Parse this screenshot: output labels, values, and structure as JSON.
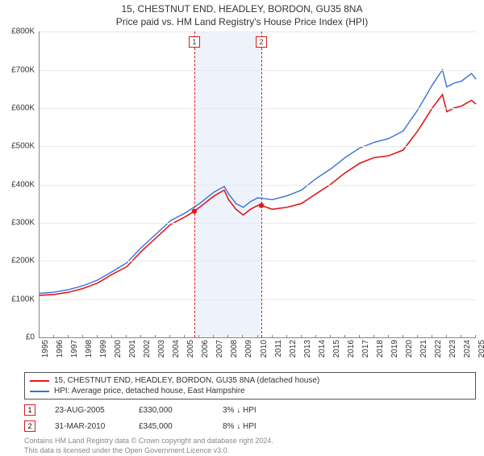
{
  "title_line1": "15, CHESTNUT END, HEADLEY, BORDON, GU35 8NA",
  "title_line2": "Price paid vs. HM Land Registry's House Price Index (HPI)",
  "chart": {
    "type": "line",
    "background_color": "#ffffff",
    "grid_color": "#e9e9e9",
    "axis_color": "#888888",
    "y": {
      "min": 0,
      "max": 800000,
      "step": 100000,
      "labels": [
        "£0",
        "£100K",
        "£200K",
        "£300K",
        "£400K",
        "£500K",
        "£600K",
        "£700K",
        "£800K"
      ]
    },
    "x": {
      "min": 1995,
      "max": 2025,
      "step": 1,
      "labels": [
        "1995",
        "1996",
        "1997",
        "1998",
        "1999",
        "2000",
        "2001",
        "2002",
        "2003",
        "2004",
        "2005",
        "2006",
        "2007",
        "2008",
        "2009",
        "2010",
        "2011",
        "2012",
        "2013",
        "2014",
        "2015",
        "2016",
        "2017",
        "2018",
        "2019",
        "2020",
        "2021",
        "2022",
        "2023",
        "2024",
        "2025"
      ]
    },
    "band": {
      "from": 2005.64,
      "to": 2010.25,
      "fill": "#eef3fb"
    },
    "events": [
      {
        "id": "1",
        "x": 2005.64,
        "color": "#e11919"
      },
      {
        "id": "2",
        "x": 2010.25,
        "color": "#e11919"
      }
    ],
    "series": [
      {
        "name": "price_paid",
        "color": "#e11919",
        "width": 1.6,
        "legend": "15, CHESTNUT END, HEADLEY, BORDON, GU35 8NA (detached house)",
        "points": [
          [
            1995,
            110000
          ],
          [
            1996,
            112000
          ],
          [
            1997,
            118000
          ],
          [
            1998,
            128000
          ],
          [
            1999,
            142000
          ],
          [
            2000,
            165000
          ],
          [
            2001,
            185000
          ],
          [
            2002,
            225000
          ],
          [
            2003,
            260000
          ],
          [
            2004,
            295000
          ],
          [
            2005,
            315000
          ],
          [
            2005.64,
            330000
          ],
          [
            2006,
            340000
          ],
          [
            2007,
            370000
          ],
          [
            2007.7,
            385000
          ],
          [
            2008,
            360000
          ],
          [
            2008.5,
            335000
          ],
          [
            2009,
            320000
          ],
          [
            2009.5,
            335000
          ],
          [
            2010,
            345000
          ],
          [
            2010.25,
            345000
          ],
          [
            2011,
            335000
          ],
          [
            2012,
            340000
          ],
          [
            2013,
            350000
          ],
          [
            2014,
            375000
          ],
          [
            2015,
            400000
          ],
          [
            2016,
            430000
          ],
          [
            2017,
            455000
          ],
          [
            2018,
            470000
          ],
          [
            2019,
            475000
          ],
          [
            2020,
            490000
          ],
          [
            2021,
            540000
          ],
          [
            2022,
            600000
          ],
          [
            2022.7,
            635000
          ],
          [
            2023,
            590000
          ],
          [
            2023.5,
            600000
          ],
          [
            2024,
            605000
          ],
          [
            2024.7,
            620000
          ],
          [
            2025,
            610000
          ]
        ],
        "markers": [
          {
            "x": 2005.64,
            "y": 330000
          },
          {
            "x": 2010.25,
            "y": 345000
          }
        ],
        "marker_color": "#e11919",
        "marker_radius": 3.2
      },
      {
        "name": "hpi",
        "color": "#3a6fd8",
        "width": 1.4,
        "legend": "HPI: Average price, detached house, East Hampshire",
        "points": [
          [
            1995,
            115000
          ],
          [
            1996,
            118000
          ],
          [
            1997,
            125000
          ],
          [
            1998,
            135000
          ],
          [
            1999,
            150000
          ],
          [
            2000,
            172000
          ],
          [
            2001,
            195000
          ],
          [
            2002,
            235000
          ],
          [
            2003,
            270000
          ],
          [
            2004,
            305000
          ],
          [
            2005,
            325000
          ],
          [
            2006,
            350000
          ],
          [
            2007,
            380000
          ],
          [
            2007.7,
            395000
          ],
          [
            2008,
            375000
          ],
          [
            2008.5,
            350000
          ],
          [
            2009,
            340000
          ],
          [
            2009.5,
            355000
          ],
          [
            2010,
            365000
          ],
          [
            2011,
            360000
          ],
          [
            2012,
            370000
          ],
          [
            2013,
            385000
          ],
          [
            2014,
            415000
          ],
          [
            2015,
            440000
          ],
          [
            2016,
            470000
          ],
          [
            2017,
            495000
          ],
          [
            2018,
            510000
          ],
          [
            2019,
            520000
          ],
          [
            2020,
            540000
          ],
          [
            2021,
            595000
          ],
          [
            2022,
            660000
          ],
          [
            2022.7,
            700000
          ],
          [
            2023,
            655000
          ],
          [
            2023.5,
            665000
          ],
          [
            2024,
            670000
          ],
          [
            2024.7,
            690000
          ],
          [
            2025,
            675000
          ]
        ]
      }
    ]
  },
  "sales": [
    {
      "id": "1",
      "date": "23-AUG-2005",
      "price": "£330,000",
      "diff": "3% ↓ HPI",
      "marker_color": "#e11919"
    },
    {
      "id": "2",
      "date": "31-MAR-2010",
      "price": "£345,000",
      "diff": "8% ↓ HPI",
      "marker_color": "#e11919"
    }
  ],
  "attribution_line1": "Contains HM Land Registry data © Crown copyright and database right 2024.",
  "attribution_line2": "This data is licensed under the Open Government Licence v3.0."
}
